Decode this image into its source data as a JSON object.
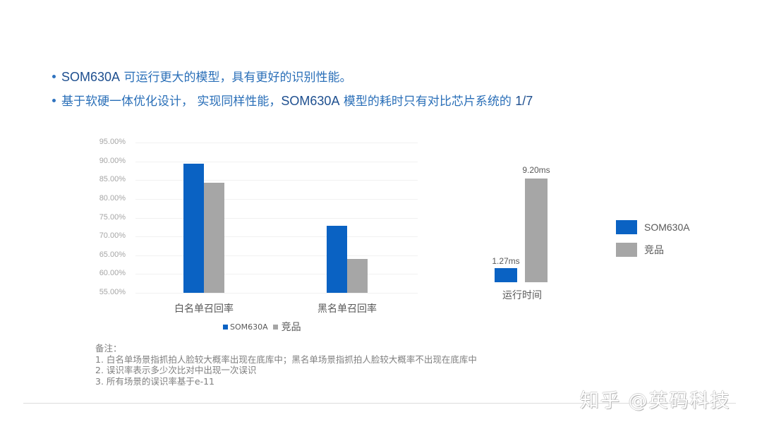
{
  "bullets": [
    {
      "highlight": "SOM630A",
      "text": " 可运行更大的模型，具有更好的识别性能。",
      "suffix": ""
    },
    {
      "highlight": "",
      "text": "基于软硬一体优化设计， 实现同样性能，",
      "suffix_hl": "SOM630A",
      "suffix_text": " 模型的耗时只有对比芯片系统的 ",
      "end_hl": "1/7"
    }
  ],
  "colors": {
    "som630a": "#0a62c3",
    "competitor": "#a6a6a6",
    "bullet_text": "#2a6fb8"
  },
  "chart_data": [
    {
      "type": "bar",
      "title": "",
      "categories": [
        "白名单召回率",
        "黑名单召回率"
      ],
      "series": [
        {
          "name": "SOM630A",
          "values": [
            89.3,
            72.8
          ]
        },
        {
          "name": "竞品",
          "values": [
            84.3,
            64.0
          ]
        }
      ],
      "yticks": [
        "95.00%",
        "90.00%",
        "85.00%",
        "80.00%",
        "75.00%",
        "70.00%",
        "65.00%",
        "60.00%",
        "55.00%"
      ],
      "ylim": [
        55,
        95
      ],
      "ylabel": "",
      "xlabel": "",
      "legend": [
        "SOM630A",
        "竞品"
      ],
      "legend_position": "bottom",
      "grid": true
    },
    {
      "type": "bar",
      "title": "",
      "categories": [
        "运行时间"
      ],
      "series": [
        {
          "name": "SOM630A",
          "values": [
            1.27
          ],
          "label": "1.27ms"
        },
        {
          "name": "竞品",
          "values": [
            9.2
          ],
          "label": "9.20ms"
        }
      ],
      "unit": "ms",
      "legend": [
        "SOM630A",
        "竞品"
      ],
      "legend_position": "right"
    }
  ],
  "legend_small": {
    "a": "SOM630A",
    "b": "竞品"
  },
  "legend_big": {
    "a": "SOM630A",
    "b": "竞品"
  },
  "runtime": {
    "category": "运行时间",
    "a_label": "1.27ms",
    "b_label": "9.20ms"
  },
  "notes": {
    "title": "备注：",
    "items": [
      "1.  白名单场景指抓拍人脸较大概率出现在底库中；黑名单场景指抓拍人脸较大概率不出现在底库中",
      "2.  误识率表示多少次比对中出现一次误识",
      "3.  所有场景的误识率基于e-11"
    ]
  },
  "watermark": "知乎 @英码科技"
}
